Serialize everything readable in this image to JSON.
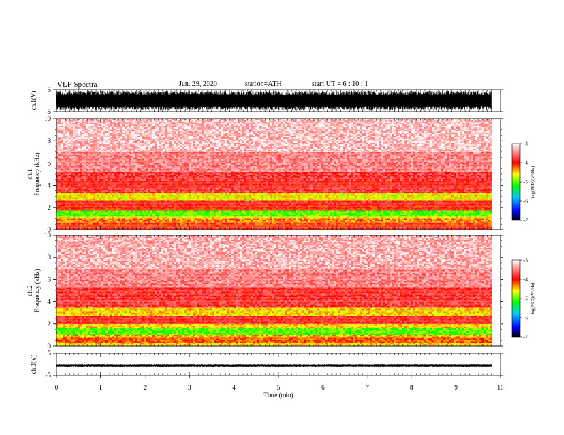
{
  "header": {
    "title": "VLF  Spectra",
    "date": "Jun. 29, 2020",
    "station": "station=ATH",
    "start": "start  UT  =    6  : 10 : 1"
  },
  "chart_data": [
    {
      "type": "line",
      "ylabel": "ch.1(V)",
      "ylim": [
        -5,
        5
      ],
      "y_ticks": [
        "5",
        "-5"
      ],
      "x_range": [
        0,
        9.8
      ],
      "description_values": {
        "amplitude_range": [
          -4.5,
          4.5
        ]
      }
    },
    {
      "type": "heatmap",
      "ylabel": "ch.1\nFrequency  (kHz)",
      "ylim": [
        0,
        10
      ],
      "y_ticks": [
        "0",
        "2",
        "4",
        "6",
        "8",
        "10"
      ],
      "x_range": [
        0,
        9.8
      ],
      "colorbar": {
        "label": "log(PSD)(V²/Hz)",
        "range": [
          -7,
          -3
        ],
        "ticks": [
          "-3",
          "-4",
          "-5",
          "-6",
          "-7"
        ]
      },
      "bands": [
        {
          "freq": [
            0,
            0.3
          ],
          "level": -4.0
        },
        {
          "freq": [
            0.3,
            0.6
          ],
          "level": -4.1
        },
        {
          "freq": [
            0.6,
            1.0
          ],
          "level": -4.3
        },
        {
          "freq": [
            1.0,
            1.2
          ],
          "level": -4.6
        },
        {
          "freq": [
            1.2,
            1.7
          ],
          "level": -5.0
        },
        {
          "freq": [
            1.7,
            2.2
          ],
          "level": -4.0
        },
        {
          "freq": [
            2.2,
            2.6
          ],
          "level": -3.9
        },
        {
          "freq": [
            2.6,
            3.3
          ],
          "level": -4.6
        },
        {
          "freq": [
            3.3,
            3.8
          ],
          "level": -3.8
        },
        {
          "freq": [
            3.8,
            4.4
          ],
          "level": -3.9
        },
        {
          "freq": [
            4.4,
            5.2
          ],
          "level": -3.8
        },
        {
          "freq": [
            5.2,
            7.0
          ],
          "level": -3.5
        },
        {
          "freq": [
            7.0,
            10.0
          ],
          "level": -3.25
        }
      ]
    },
    {
      "type": "heatmap",
      "ylabel": "ch.2\nFrequency  (kHz)",
      "ylim": [
        0,
        10
      ],
      "y_ticks": [
        "0",
        "2",
        "4",
        "6",
        "8",
        "10"
      ],
      "x_range": [
        0,
        9.8
      ],
      "colorbar": {
        "label": "log(PSD)(V²/Hz)",
        "range": [
          -7,
          -3
        ],
        "ticks": [
          "-3",
          "-4",
          "-5",
          "-6",
          "-7"
        ]
      },
      "bands": [
        {
          "freq": [
            0,
            0.3
          ],
          "level": -4.5
        },
        {
          "freq": [
            0.3,
            0.8
          ],
          "level": -4.2
        },
        {
          "freq": [
            0.8,
            1.0
          ],
          "level": -4.4
        },
        {
          "freq": [
            1.0,
            1.6
          ],
          "level": -5.0
        },
        {
          "freq": [
            1.6,
            2.0
          ],
          "level": -4.5
        },
        {
          "freq": [
            2.0,
            2.7
          ],
          "level": -3.9
        },
        {
          "freq": [
            2.7,
            3.5
          ],
          "level": -4.5
        },
        {
          "freq": [
            3.5,
            4.0
          ],
          "level": -3.8
        },
        {
          "freq": [
            4.0,
            5.3
          ],
          "level": -3.85
        },
        {
          "freq": [
            5.3,
            7.0
          ],
          "level": -3.5
        },
        {
          "freq": [
            7.0,
            10.0
          ],
          "level": -3.3
        }
      ]
    },
    {
      "type": "line",
      "ylabel": "ch.3(V)",
      "ylim": [
        -5,
        5
      ],
      "y_ticks": [
        "5",
        "-5"
      ],
      "x_range": [
        0,
        9.8
      ],
      "description_values": {
        "amplitude_range": [
          -0.6,
          0.6
        ],
        "offset": -0.5
      }
    }
  ],
  "x_axis": {
    "label": "Time  (min)",
    "range": [
      0,
      10
    ],
    "ticks": [
      "0",
      "1",
      "2",
      "3",
      "4",
      "5",
      "6",
      "7",
      "8",
      "9",
      "10"
    ]
  }
}
